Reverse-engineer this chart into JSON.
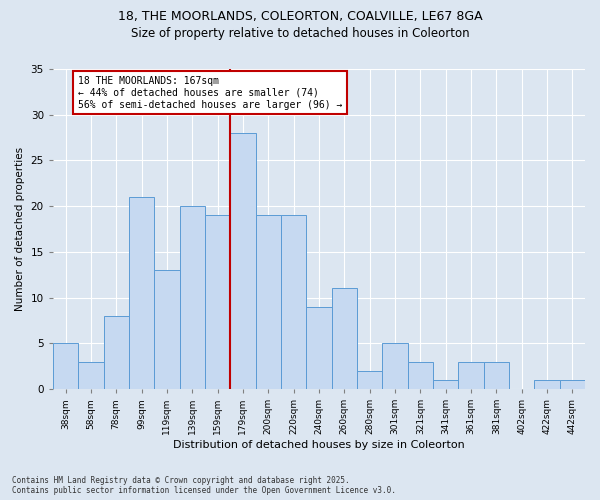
{
  "title_line1": "18, THE MOORLANDS, COLEORTON, COALVILLE, LE67 8GA",
  "title_line2": "Size of property relative to detached houses in Coleorton",
  "xlabel": "Distribution of detached houses by size in Coleorton",
  "ylabel": "Number of detached properties",
  "footnote": "Contains HM Land Registry data © Crown copyright and database right 2025.\nContains public sector information licensed under the Open Government Licence v3.0.",
  "bin_labels": [
    "38sqm",
    "58sqm",
    "78sqm",
    "99sqm",
    "119sqm",
    "139sqm",
    "159sqm",
    "179sqm",
    "200sqm",
    "220sqm",
    "240sqm",
    "260sqm",
    "280sqm",
    "301sqm",
    "321sqm",
    "341sqm",
    "361sqm",
    "381sqm",
    "402sqm",
    "422sqm",
    "442sqm"
  ],
  "bar_values": [
    5,
    3,
    8,
    21,
    13,
    20,
    19,
    28,
    19,
    19,
    9,
    11,
    2,
    5,
    3,
    1,
    3,
    3,
    0,
    1,
    1
  ],
  "bar_color": "#c6d9f1",
  "bar_edge_color": "#5b9bd5",
  "vline_index": 7,
  "vline_color": "#c00000",
  "annotation_text": "18 THE MOORLANDS: 167sqm\n← 44% of detached houses are smaller (74)\n56% of semi-detached houses are larger (96) →",
  "annotation_box_color": "#ffffff",
  "annotation_box_edge": "#c00000",
  "ylim": [
    0,
    35
  ],
  "yticks": [
    0,
    5,
    10,
    15,
    20,
    25,
    30,
    35
  ],
  "fig_bg_color": "#dce6f1",
  "plot_bg_color": "#dce6f1"
}
